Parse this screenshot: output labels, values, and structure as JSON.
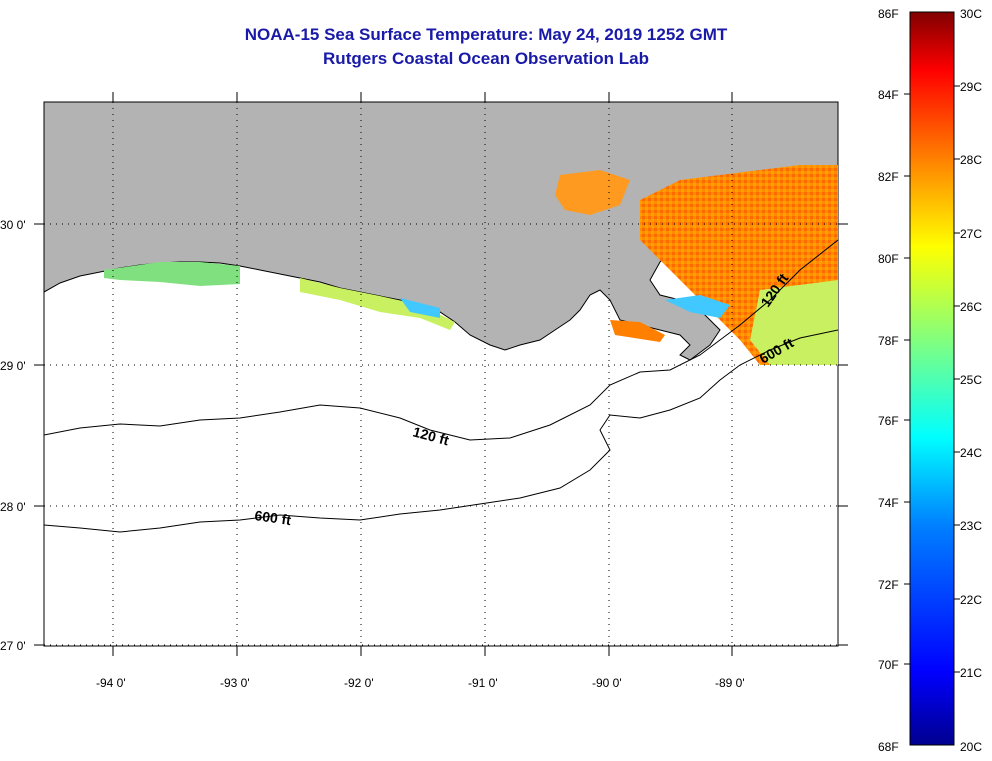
{
  "title_line1": "NOAA-15 Sea Surface Temperature:  May 24, 2019 1252 GMT",
  "title_line2": "Rutgers Coastal Ocean Observation Lab",
  "map": {
    "lat_labels": [
      "30 0'",
      "29 0'",
      "28 0'",
      "27 0'"
    ],
    "lon_labels": [
      "-94 0'",
      "-93 0'",
      "-92 0'",
      "-91 0'",
      "-90 0'",
      "-89 0'"
    ],
    "contour_labels": [
      "120 ft",
      "120 ft",
      "600 ft",
      "600 ft"
    ],
    "colors": {
      "land": "#b3b3b3",
      "background": "#ffffff"
    }
  },
  "colorbar": {
    "f_labels": [
      "86F",
      "84F",
      "82F",
      "80F",
      "78F",
      "76F",
      "74F",
      "72F",
      "70F",
      "68F"
    ],
    "c_labels": [
      "30C",
      "29C",
      "28C",
      "27C",
      "26C",
      "25C",
      "24C",
      "23C",
      "22C",
      "21C",
      "20C"
    ],
    "colors": [
      "#00008f",
      "#0000ff",
      "#0080ff",
      "#00ffff",
      "#80ff80",
      "#ffff00",
      "#ff8000",
      "#ff0000",
      "#800000"
    ]
  }
}
